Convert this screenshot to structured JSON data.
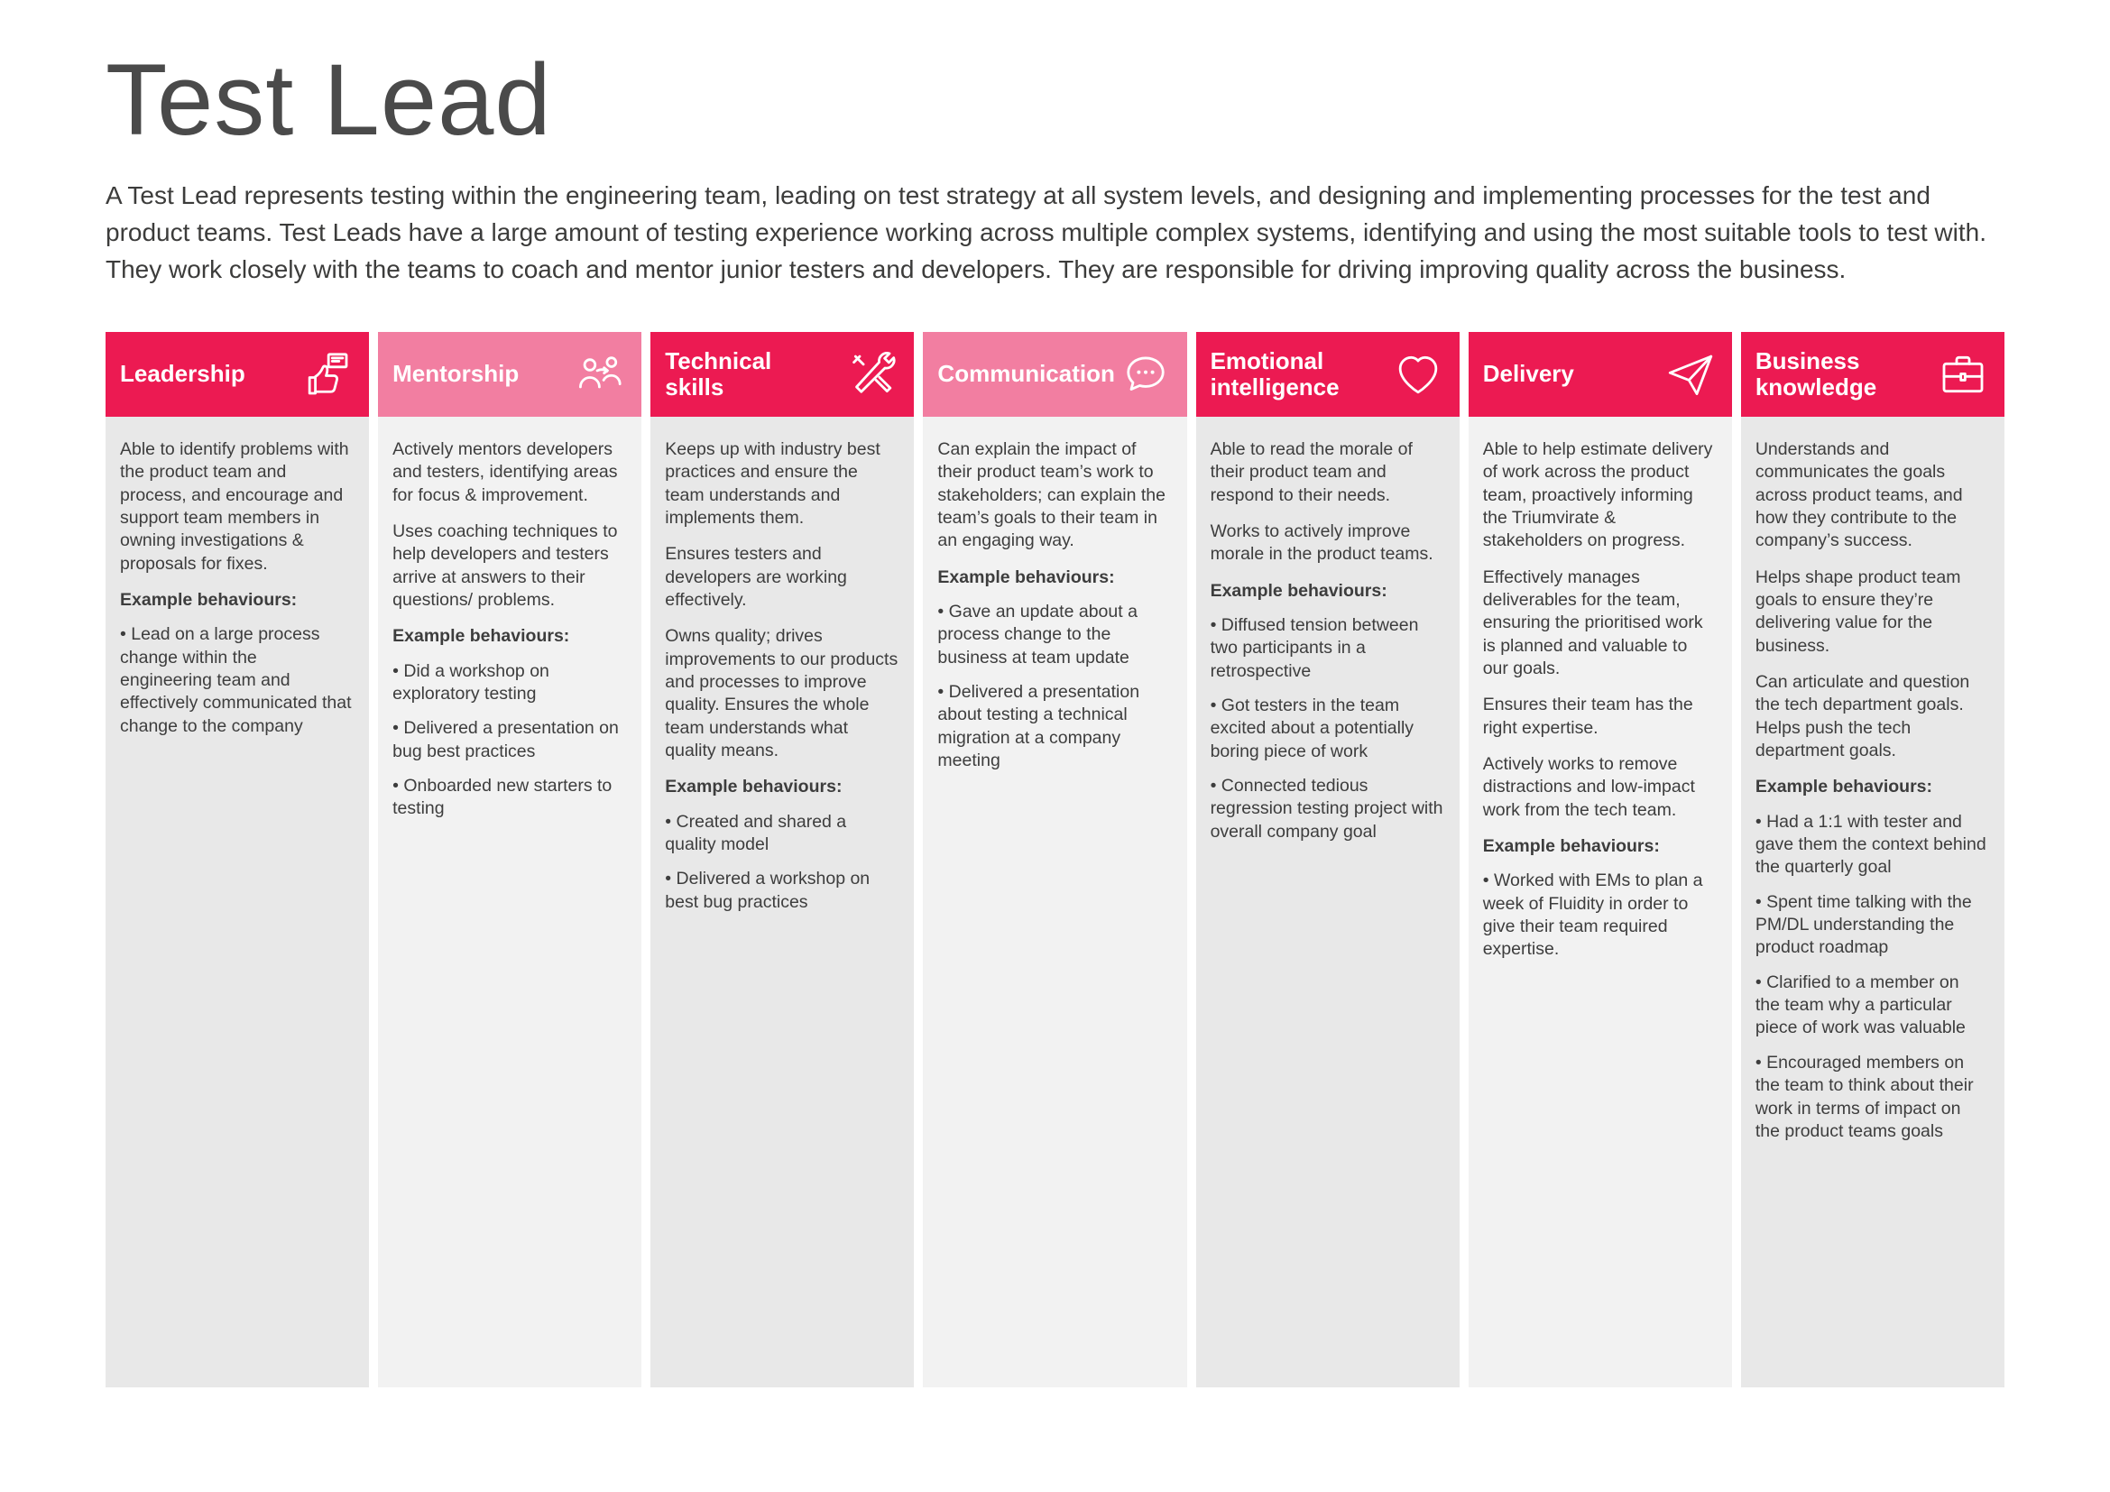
{
  "page": {
    "title": "Test Lead",
    "intro": "A Test Lead represents testing within the engineering team, leading on test strategy at all system levels, and designing and implementing processes for the test and product teams. Test Leads have a large amount of testing experience working across multiple complex systems, identifying and using the most suitable tools to test with. They work closely with the teams to coach and mentor junior testers and developers. They are responsible for driving improving quality across the business."
  },
  "colors": {
    "crimson": "#ec1a52",
    "light_pink": "#f27ea1",
    "body_gray_dark": "#e8e8e8",
    "body_gray_light": "#f2f2f2"
  },
  "columns": [
    {
      "label": "Leadership",
      "icon": "leadership-icon",
      "header_color": "#ec1a52",
      "body_color": "#e8e8e8",
      "sections": [
        {
          "type": "p",
          "text": "Able to identify problems with the product team and process, and encourage and support team members in owning investigations & proposals for fixes."
        },
        {
          "type": "h",
          "text": "Example behaviours:"
        },
        {
          "type": "b",
          "text": "Lead on a large process change within the engineering team and effectively communicated that change to the company"
        }
      ]
    },
    {
      "label": "Mentorship",
      "icon": "mentorship-icon",
      "header_color": "#f27ea1",
      "body_color": "#f2f2f2",
      "sections": [
        {
          "type": "p",
          "text": "Actively mentors developers and testers, identifying areas for focus & improvement."
        },
        {
          "type": "p",
          "text": "Uses coaching techniques to help developers and testers arrive at answers to their questions/ problems."
        },
        {
          "type": "h",
          "text": "Example behaviours:"
        },
        {
          "type": "b",
          "text": "Did a workshop on exploratory testing"
        },
        {
          "type": "b",
          "text": "Delivered a presentation on bug best practices"
        },
        {
          "type": "b",
          "text": "Onboarded new starters to testing"
        }
      ]
    },
    {
      "label": "Technical skills",
      "icon": "technical-skills-icon",
      "header_color": "#ec1a52",
      "body_color": "#e8e8e8",
      "sections": [
        {
          "type": "p",
          "text": "Keeps up with industry best practices and ensure the team understands and implements them."
        },
        {
          "type": "p",
          "text": "Ensures testers and developers are working effectively."
        },
        {
          "type": "p",
          "text": "Owns quality; drives improvements to our products and processes to improve quality. Ensures the whole team understands what quality means."
        },
        {
          "type": "h",
          "text": "Example behaviours:"
        },
        {
          "type": "b",
          "text": "Created and shared a quality model"
        },
        {
          "type": "b",
          "text": "Delivered a workshop on best bug practices"
        }
      ]
    },
    {
      "label": "Communication",
      "icon": "communication-icon",
      "header_color": "#f27ea1",
      "body_color": "#f2f2f2",
      "sections": [
        {
          "type": "p",
          "text": "Can explain the impact of their product team’s work to stakeholders; can explain the team’s goals to their team in an engaging way."
        },
        {
          "type": "h",
          "text": "Example behaviours:"
        },
        {
          "type": "b",
          "text": "Gave an update about a process change to the business at team update"
        },
        {
          "type": "b",
          "text": "Delivered a presentation about testing a technical migration at a company meeting"
        }
      ]
    },
    {
      "label": "Emotional intelligence",
      "icon": "emotional-intelligence-icon",
      "header_color": "#ec1a52",
      "body_color": "#e8e8e8",
      "sections": [
        {
          "type": "p",
          "text": "Able to read the morale of their product team and respond to their needs."
        },
        {
          "type": "p",
          "text": "Works to actively improve morale in the product teams."
        },
        {
          "type": "h",
          "text": "Example behaviours:"
        },
        {
          "type": "b",
          "text": "Diffused tension between two participants in a retrospective"
        },
        {
          "type": "b",
          "text": "Got testers in the team excited about a potentially boring piece of work"
        },
        {
          "type": "b",
          "text": "Connected tedious regression testing project with overall company goal"
        }
      ]
    },
    {
      "label": "Delivery",
      "icon": "delivery-icon",
      "header_color": "#ec1a52",
      "body_color": "#f2f2f2",
      "sections": [
        {
          "type": "p",
          "text": "Able to help estimate delivery of work across the product team, proactively informing the Triumvirate & stakeholders on progress."
        },
        {
          "type": "p",
          "text": "Effectively manages deliverables for the team, ensuring the prioritised work is planned and valuable to our goals."
        },
        {
          "type": "p",
          "text": "Ensures their team has the right expertise."
        },
        {
          "type": "p",
          "text": "Actively works to remove distractions and low-impact work from the tech team."
        },
        {
          "type": "h",
          "text": "Example behaviours:"
        },
        {
          "type": "b",
          "text": "Worked with EMs to plan a week of Fluidity in order to give their team required expertise."
        }
      ]
    },
    {
      "label": "Business knowledge",
      "icon": "business-knowledge-icon",
      "header_color": "#ec1a52",
      "body_color": "#e8e8e8",
      "sections": [
        {
          "type": "p",
          "text": "Understands and communicates the goals across product teams, and how they contribute to the company’s success."
        },
        {
          "type": "p",
          "text": "Helps shape product team goals to ensure they’re delivering value for the business."
        },
        {
          "type": "p",
          "text": "Can articulate and question the tech department goals. Helps push the tech department goals."
        },
        {
          "type": "h",
          "text": "Example behaviours:"
        },
        {
          "type": "b",
          "text": "Had a 1:1 with tester and gave them the context behind the quarterly goal"
        },
        {
          "type": "b",
          "text": "Spent time talking with the PM/DL understanding the product roadmap"
        },
        {
          "type": "b",
          "text": "Clarified to a member on the team why a particular piece of work was valuable"
        },
        {
          "type": "b",
          "text": "Encouraged members on the team to think about their work in terms of impact on the product teams goals"
        }
      ]
    }
  ]
}
